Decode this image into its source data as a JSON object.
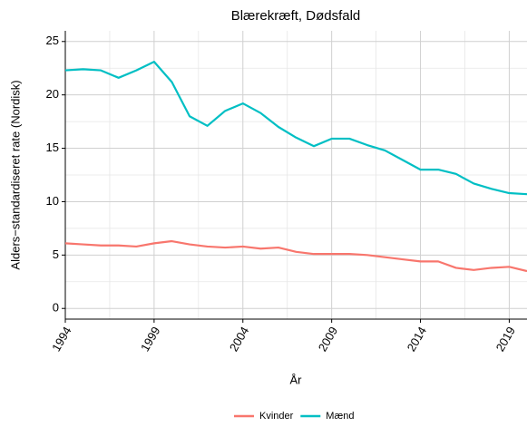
{
  "chart_data": {
    "type": "line",
    "title": "Blærekræft, Dødsfald",
    "x_label": "År",
    "y_label": "Alders−standardiseret rate (Nordisk)",
    "x": [
      1994,
      1995,
      1996,
      1997,
      1998,
      1999,
      2000,
      2001,
      2002,
      2003,
      2004,
      2005,
      2006,
      2007,
      2008,
      2009,
      2010,
      2011,
      2012,
      2013,
      2014,
      2015,
      2016,
      2017,
      2018,
      2019,
      2020
    ],
    "series": [
      {
        "name": "Kvinder",
        "color": "#f8766d",
        "values": [
          6.1,
          6.0,
          5.9,
          5.9,
          5.8,
          6.1,
          6.3,
          6.0,
          5.8,
          5.7,
          5.8,
          5.6,
          5.7,
          5.3,
          5.1,
          5.1,
          5.1,
          5.0,
          4.8,
          4.6,
          4.4,
          4.4,
          3.8,
          3.6,
          3.8,
          3.9,
          3.5
        ]
      },
      {
        "name": "Mænd",
        "color": "#00bfc4",
        "values": [
          22.3,
          22.4,
          22.3,
          21.6,
          22.3,
          23.1,
          21.2,
          18.0,
          17.1,
          18.5,
          19.2,
          18.3,
          17.0,
          16.0,
          15.2,
          15.9,
          15.9,
          15.3,
          14.8,
          13.9,
          13.0,
          13.0,
          12.6,
          11.7,
          11.2,
          10.8,
          10.7
        ]
      }
    ],
    "xlim": [
      1994,
      2020
    ],
    "xticks": [
      1994,
      1999,
      2004,
      2009,
      2014,
      2019
    ],
    "ylim": [
      -1,
      26
    ],
    "yticks": [
      0,
      5,
      10,
      15,
      20,
      25
    ],
    "grid": true,
    "legend": "bottom"
  }
}
